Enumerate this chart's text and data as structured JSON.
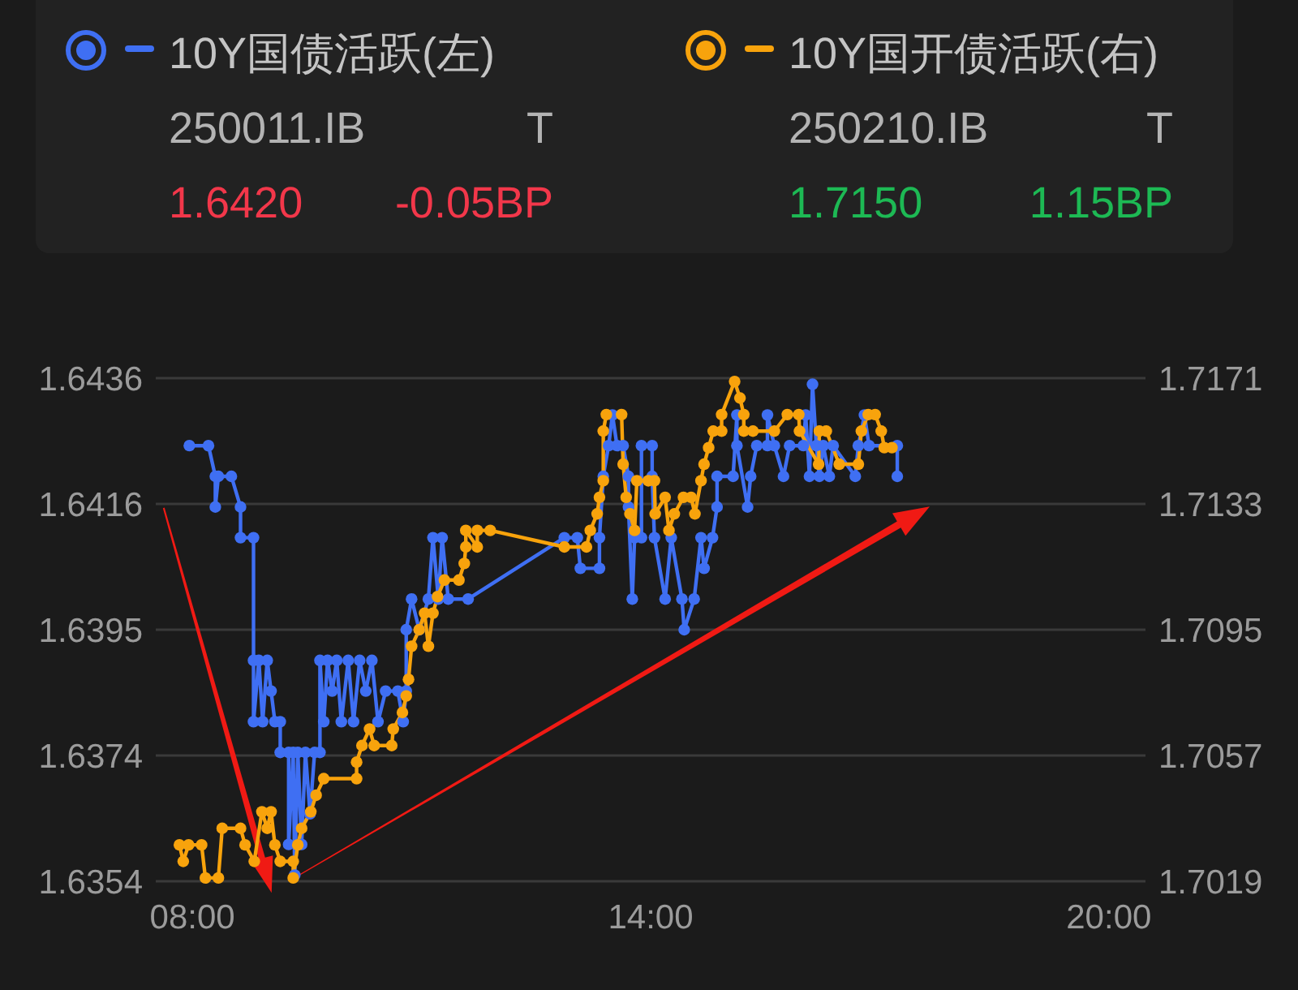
{
  "chart_data": {
    "type": "line",
    "legend": "top",
    "grid": "y",
    "marker": "circle",
    "xlim": [
      7.52,
      20.48
    ],
    "xticks": [
      {
        "value": 8,
        "label": "08:00"
      },
      {
        "value": 14,
        "label": "14:00"
      },
      {
        "value": 20,
        "label": "20:00"
      }
    ],
    "ylim": [
      1.6354,
      1.6436
    ],
    "yticks": [
      1.6354,
      {
        "value": 1.63745,
        "label": "1.6374"
      },
      1.6395,
      {
        "value": 1.64155,
        "label": "1.6416"
      },
      1.6436
    ],
    "y2lim": [
      1.7019,
      1.7171
    ],
    "y2ticks": [
      1.7019,
      1.7057,
      1.7095,
      1.7133,
      1.7171
    ],
    "series": [
      {
        "name": "10Y国债活跃(左)",
        "color": "#3f6ff3",
        "x": [
          7.96,
          8.21,
          8.3,
          8.3,
          8.34,
          8.51,
          8.63,
          8.63,
          8.8,
          8.8,
          8.8,
          8.87,
          8.92,
          8.98,
          9.03,
          9.08,
          9.15,
          9.15,
          9.26,
          9.26,
          9.32,
          9.34,
          9.38,
          9.43,
          9.48,
          9.54,
          9.6,
          9.67,
          9.67,
          9.72,
          9.77,
          9.83,
          9.89,
          9.95,
          10.04,
          10.11,
          10.19,
          10.27,
          10.35,
          10.43,
          10.53,
          10.69,
          10.76,
          10.8,
          10.8,
          10.87,
          10.97,
          11.09,
          11.15,
          11.22,
          11.27,
          11.35,
          11.61,
          12.87,
          13.04,
          13.08,
          13.33,
          13.33,
          13.38,
          13.45,
          13.5,
          13.56,
          13.64,
          13.71,
          13.71,
          13.76,
          13.79,
          13.88,
          13.88,
          14.02,
          14.02,
          14.05,
          14.19,
          14.27,
          14.41,
          14.44,
          14.57,
          14.66,
          14.7,
          14.81,
          14.87,
          14.87,
          15.08,
          15.13,
          15.13,
          15.27,
          15.31,
          15.39,
          15.53,
          15.53,
          15.62,
          15.74,
          15.82,
          16.0,
          16.03,
          16.08,
          16.12,
          16.17,
          16.21,
          16.26,
          16.34,
          16.39,
          16.68,
          16.72,
          16.8,
          16.86,
          17.23,
          17.23
        ],
        "values": [
          1.6425,
          1.6425,
          1.642,
          1.6415,
          1.642,
          1.642,
          1.6415,
          1.641,
          1.641,
          1.639,
          1.638,
          1.639,
          1.638,
          1.639,
          1.6385,
          1.638,
          1.638,
          1.6375,
          1.6375,
          1.636,
          1.6375,
          1.6355,
          1.6375,
          1.636,
          1.6375,
          1.6365,
          1.6375,
          1.6375,
          1.639,
          1.638,
          1.639,
          1.6385,
          1.639,
          1.638,
          1.639,
          1.638,
          1.639,
          1.6385,
          1.639,
          1.638,
          1.6385,
          1.6385,
          1.638,
          1.6385,
          1.6395,
          1.64,
          1.6395,
          1.64,
          1.641,
          1.64,
          1.641,
          1.64,
          1.64,
          1.641,
          1.641,
          1.6405,
          1.6405,
          1.641,
          1.642,
          1.6425,
          1.643,
          1.6425,
          1.6425,
          1.642,
          1.6415,
          1.64,
          1.641,
          1.641,
          1.6425,
          1.6425,
          1.642,
          1.641,
          1.64,
          1.641,
          1.64,
          1.6395,
          1.64,
          1.641,
          1.6405,
          1.641,
          1.6415,
          1.642,
          1.642,
          1.643,
          1.6425,
          1.6415,
          1.642,
          1.6425,
          1.6425,
          1.643,
          1.6425,
          1.642,
          1.6425,
          1.6425,
          1.643,
          1.642,
          1.6435,
          1.6425,
          1.642,
          1.6425,
          1.642,
          1.6425,
          1.642,
          1.6425,
          1.643,
          1.6425,
          1.6425,
          1.642
        ]
      },
      {
        "name": "10Y国开债活跃(右)",
        "color": "#f8a30c",
        "axis": "y2",
        "x": [
          7.83,
          7.88,
          7.95,
          8.12,
          8.17,
          8.34,
          8.39,
          8.63,
          8.69,
          8.81,
          8.91,
          8.98,
          9.03,
          9.08,
          9.15,
          9.32,
          9.32,
          9.38,
          9.43,
          9.55,
          9.62,
          9.72,
          10.15,
          10.15,
          10.22,
          10.32,
          10.38,
          10.61,
          10.63,
          10.75,
          10.8,
          10.83,
          10.87,
          10.97,
          11.04,
          11.09,
          11.15,
          11.21,
          11.3,
          11.49,
          11.56,
          11.58,
          11.58,
          11.73,
          11.73,
          11.9,
          12.87,
          13.16,
          13.21,
          13.3,
          13.33,
          13.38,
          13.38,
          13.42,
          13.62,
          13.64,
          13.68,
          13.73,
          13.79,
          13.82,
          13.97,
          14.05,
          14.06,
          14.19,
          14.24,
          14.31,
          14.43,
          14.53,
          14.58,
          14.66,
          14.7,
          14.76,
          14.82,
          14.93,
          14.93,
          15.1,
          15.17,
          15.22,
          15.22,
          15.34,
          15.62,
          15.79,
          15.94,
          15.95,
          16.2,
          16.21,
          16.3,
          16.47,
          16.72,
          16.76,
          16.85,
          16.94,
          17.02,
          17.06,
          17.16
        ],
        "values": [
          1.703,
          1.7025,
          1.703,
          1.703,
          1.702,
          1.702,
          1.7035,
          1.7035,
          1.703,
          1.7025,
          1.704,
          1.7035,
          1.704,
          1.703,
          1.7025,
          1.7025,
          1.702,
          1.703,
          1.7035,
          1.704,
          1.7045,
          1.705,
          1.705,
          1.7055,
          1.706,
          1.7065,
          1.706,
          1.706,
          1.7065,
          1.707,
          1.7075,
          1.708,
          1.709,
          1.7095,
          1.71,
          1.709,
          1.71,
          1.7105,
          1.711,
          1.711,
          1.7115,
          1.712,
          1.7125,
          1.712,
          1.7125,
          1.7125,
          1.712,
          1.712,
          1.7125,
          1.713,
          1.7135,
          1.714,
          1.7155,
          1.716,
          1.716,
          1.7145,
          1.7135,
          1.713,
          1.7125,
          1.714,
          1.714,
          1.714,
          1.713,
          1.7135,
          1.7125,
          1.713,
          1.7135,
          1.7135,
          1.713,
          1.714,
          1.7145,
          1.715,
          1.7155,
          1.7155,
          1.716,
          1.717,
          1.7165,
          1.716,
          1.7155,
          1.7155,
          1.7155,
          1.716,
          1.716,
          1.7155,
          1.7145,
          1.7155,
          1.7155,
          1.7145,
          1.7145,
          1.7155,
          1.716,
          1.716,
          1.7155,
          1.715,
          1.715
        ]
      }
    ],
    "annotations": [
      "250011.IB",
      "T",
      "1.6420",
      "-0.05BP",
      "250210.IB",
      "T",
      "1.7150",
      "1.15BP"
    ]
  }
}
